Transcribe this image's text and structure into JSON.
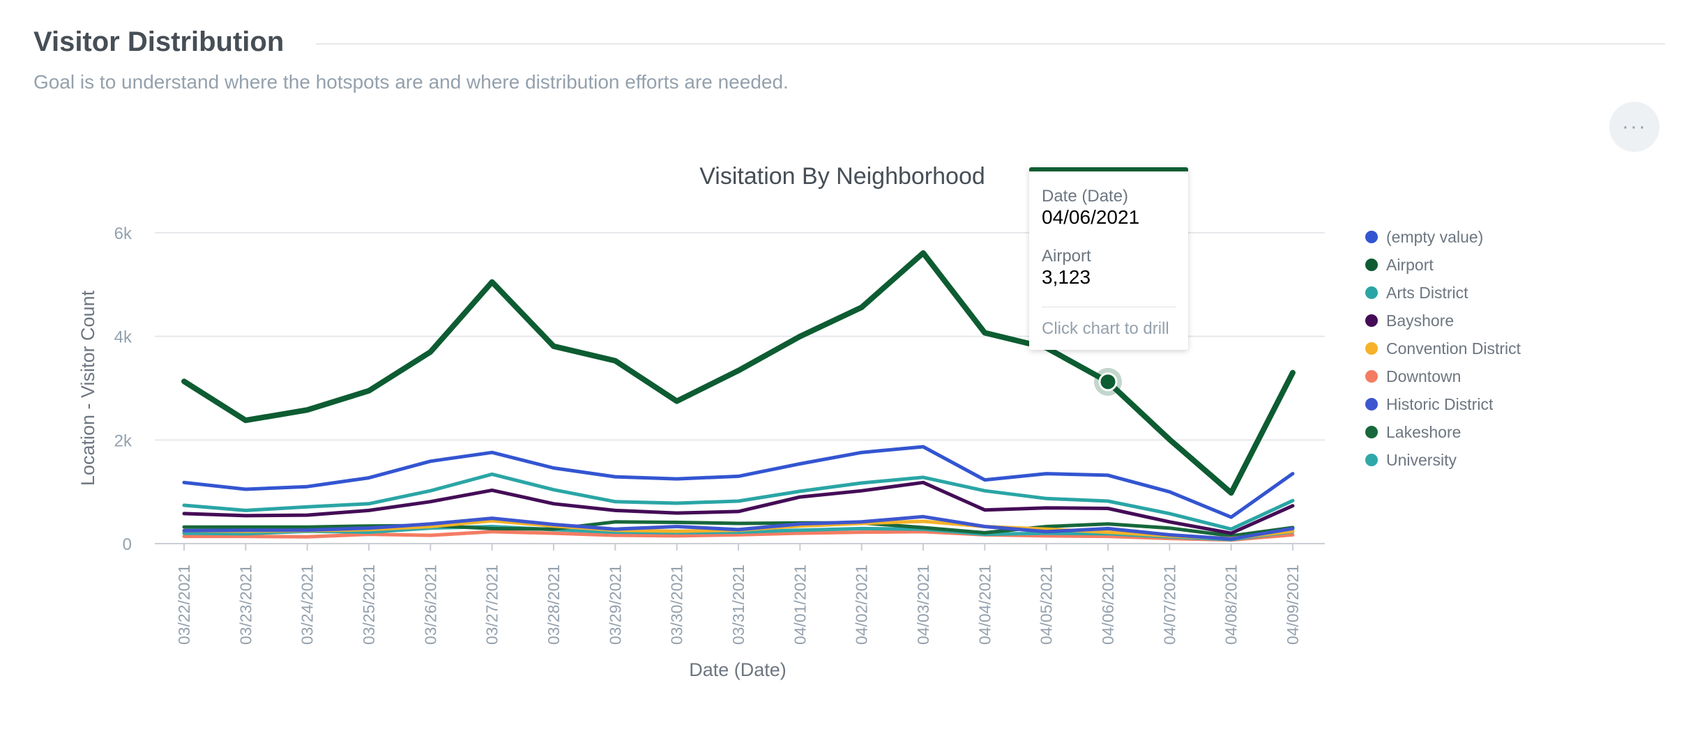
{
  "section": {
    "title": "Visitor Distribution",
    "description": "Goal is to understand where the hotspots are and where distribution efforts are needed.",
    "menu_label": "···"
  },
  "tooltip": {
    "field1_label": "Date (Date)",
    "field1_value": "04/06/2021",
    "field2_label": "Airport",
    "field2_value": "3,123",
    "hint": "Click chart to drill",
    "accent": "#0d5c32"
  },
  "chart_data": {
    "type": "line",
    "title": "Visitation By Neighborhood",
    "xlabel": "Date (Date)",
    "ylabel": "Location - Visitor Count",
    "ylim": [
      0,
      6000
    ],
    "yticks": [
      0,
      2000,
      4000,
      6000
    ],
    "ytick_labels": [
      "0",
      "2k",
      "4k",
      "6k"
    ],
    "grid": true,
    "legend_position": "right",
    "highlight": {
      "series": "Airport",
      "category": "04/06/2021",
      "value": 3123
    },
    "categories": [
      "03/22/2021",
      "03/23/2021",
      "03/24/2021",
      "03/25/2021",
      "03/26/2021",
      "03/27/2021",
      "03/28/2021",
      "03/29/2021",
      "03/30/2021",
      "03/31/2021",
      "04/01/2021",
      "04/02/2021",
      "04/03/2021",
      "04/04/2021",
      "04/05/2021",
      "04/06/2021",
      "04/07/2021",
      "04/08/2021",
      "04/09/2021"
    ],
    "series": [
      {
        "name": "(empty value)",
        "color": "#3355d1",
        "values": [
          1180,
          1050,
          1100,
          1270,
          1590,
          1760,
          1460,
          1290,
          1250,
          1300,
          1540,
          1760,
          1870,
          1230,
          1350,
          1320,
          1000,
          510,
          1350
        ]
      },
      {
        "name": "Airport",
        "color": "#0d5c32",
        "values": [
          3130,
          2380,
          2580,
          2950,
          3700,
          5050,
          3810,
          3530,
          2750,
          3340,
          4000,
          4560,
          5610,
          4070,
          3780,
          3123,
          2010,
          980,
          3300
        ]
      },
      {
        "name": "Arts District",
        "color": "#2aa5a5",
        "values": [
          740,
          640,
          710,
          770,
          1020,
          1340,
          1040,
          810,
          780,
          820,
          1010,
          1170,
          1280,
          1020,
          870,
          820,
          580,
          280,
          830
        ]
      },
      {
        "name": "Bayshore",
        "color": "#440c56",
        "values": [
          580,
          540,
          550,
          640,
          810,
          1030,
          770,
          640,
          590,
          620,
          900,
          1020,
          1180,
          650,
          690,
          680,
          420,
          200,
          730
        ]
      },
      {
        "name": "Convention District",
        "color": "#f5b22a",
        "values": [
          250,
          240,
          250,
          270,
          330,
          440,
          340,
          260,
          240,
          260,
          340,
          390,
          430,
          330,
          280,
          220,
          150,
          100,
          240
        ]
      },
      {
        "name": "Downtown",
        "color": "#f47c63",
        "values": [
          140,
          140,
          130,
          180,
          160,
          230,
          200,
          160,
          150,
          170,
          200,
          220,
          230,
          170,
          150,
          140,
          100,
          70,
          170
        ]
      },
      {
        "name": "Historic District",
        "color": "#3d56cf",
        "values": [
          250,
          260,
          260,
          300,
          380,
          490,
          370,
          280,
          330,
          270,
          380,
          420,
          520,
          330,
          230,
          290,
          170,
          90,
          290
        ]
      },
      {
        "name": "Lakeshore",
        "color": "#17683c",
        "values": [
          320,
          320,
          320,
          340,
          350,
          290,
          280,
          420,
          410,
          390,
          400,
          400,
          310,
          210,
          330,
          380,
          300,
          150,
          310
        ]
      },
      {
        "name": "University",
        "color": "#2fa8a8",
        "values": [
          200,
          190,
          240,
          220,
          300,
          330,
          270,
          220,
          210,
          220,
          260,
          290,
          280,
          180,
          200,
          190,
          130,
          80,
          230
        ]
      }
    ]
  }
}
